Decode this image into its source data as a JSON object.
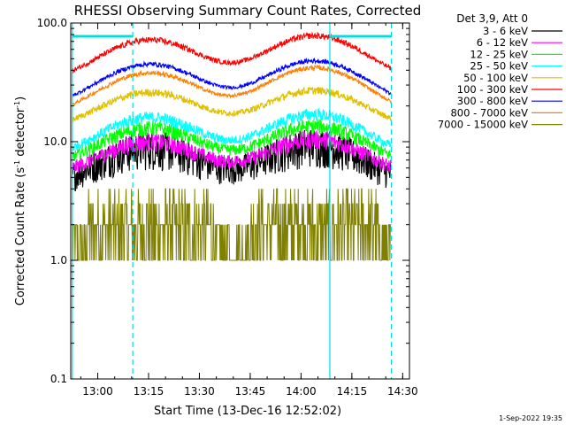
{
  "chart_data": {
    "type": "line",
    "title": "RHESSI Observing Summary Count Rates, Corrected",
    "xlabel": "Start Time (13-Dec-16 12:52:02)",
    "ylabel": "Corrected Count Rate (s",
    "ylabel_sup1": "-1",
    "ylabel_mid": " detector",
    "ylabel_sup2": "-1",
    "ylabel_end": ")",
    "yscale": "log",
    "ylim": [
      0.1,
      100.0
    ],
    "xlim": [
      "12:52:02",
      "14:32:00"
    ],
    "x_ticks": [
      "13:00",
      "13:15",
      "13:30",
      "13:45",
      "14:00",
      "14:15",
      "14:30"
    ],
    "y_ticks": [
      "0.1",
      "1.0",
      "10.0",
      "100.0"
    ],
    "legend_header": "Det 3,9, Att 0",
    "legend_position": "right",
    "date_stamp": "1-Sep-2022 19:35",
    "night_boundaries": [
      "12:52:30",
      "14:08:30"
    ],
    "saa_boundaries": [
      "13:10:20",
      "14:26:40"
    ],
    "series": [
      {
        "name": "3 - 6 keV",
        "color": "#000000",
        "night_level": 4.2,
        "peak": [
          9.0,
          9.5
        ],
        "noise": 0.25
      },
      {
        "name": "6 - 12 keV",
        "color": "#ff00ff",
        "night_level": 5.0,
        "peak": [
          10.0,
          10.5
        ],
        "noise": 0.12
      },
      {
        "name": "12 - 25 keV",
        "color": "#00ff00",
        "night_level": 6.0,
        "peak": [
          13.0,
          13.5
        ],
        "noise": 0.1
      },
      {
        "name": "25 - 50 keV",
        "color": "#00ffff",
        "night_level": 7.0,
        "peak": [
          16.0,
          17.0
        ],
        "noise": 0.08
      },
      {
        "name": "50 - 100 keV",
        "color": "#e0c000",
        "night_level": 12.5,
        "peak": [
          26.0,
          27.0
        ],
        "noise": 0.05
      },
      {
        "name": "100 - 300 keV",
        "color": "#ff0000",
        "night_level": 31.0,
        "peak": [
          72.0,
          78.0
        ],
        "noise": 0.04
      },
      {
        "name": "300 - 800 keV",
        "color": "#0000ff",
        "night_level": 19.0,
        "peak": [
          45.0,
          48.0
        ],
        "noise": 0.03
      },
      {
        "name": "800 - 7000 keV",
        "color": "#ff8000",
        "night_level": 16.0,
        "peak": [
          38.0,
          42.0
        ],
        "noise": 0.03
      },
      {
        "name": "7000 - 15000 keV",
        "color": "#808000",
        "night_level": 1.0,
        "peak": [
          3.0,
          3.0
        ],
        "noise": 0.0
      }
    ]
  }
}
